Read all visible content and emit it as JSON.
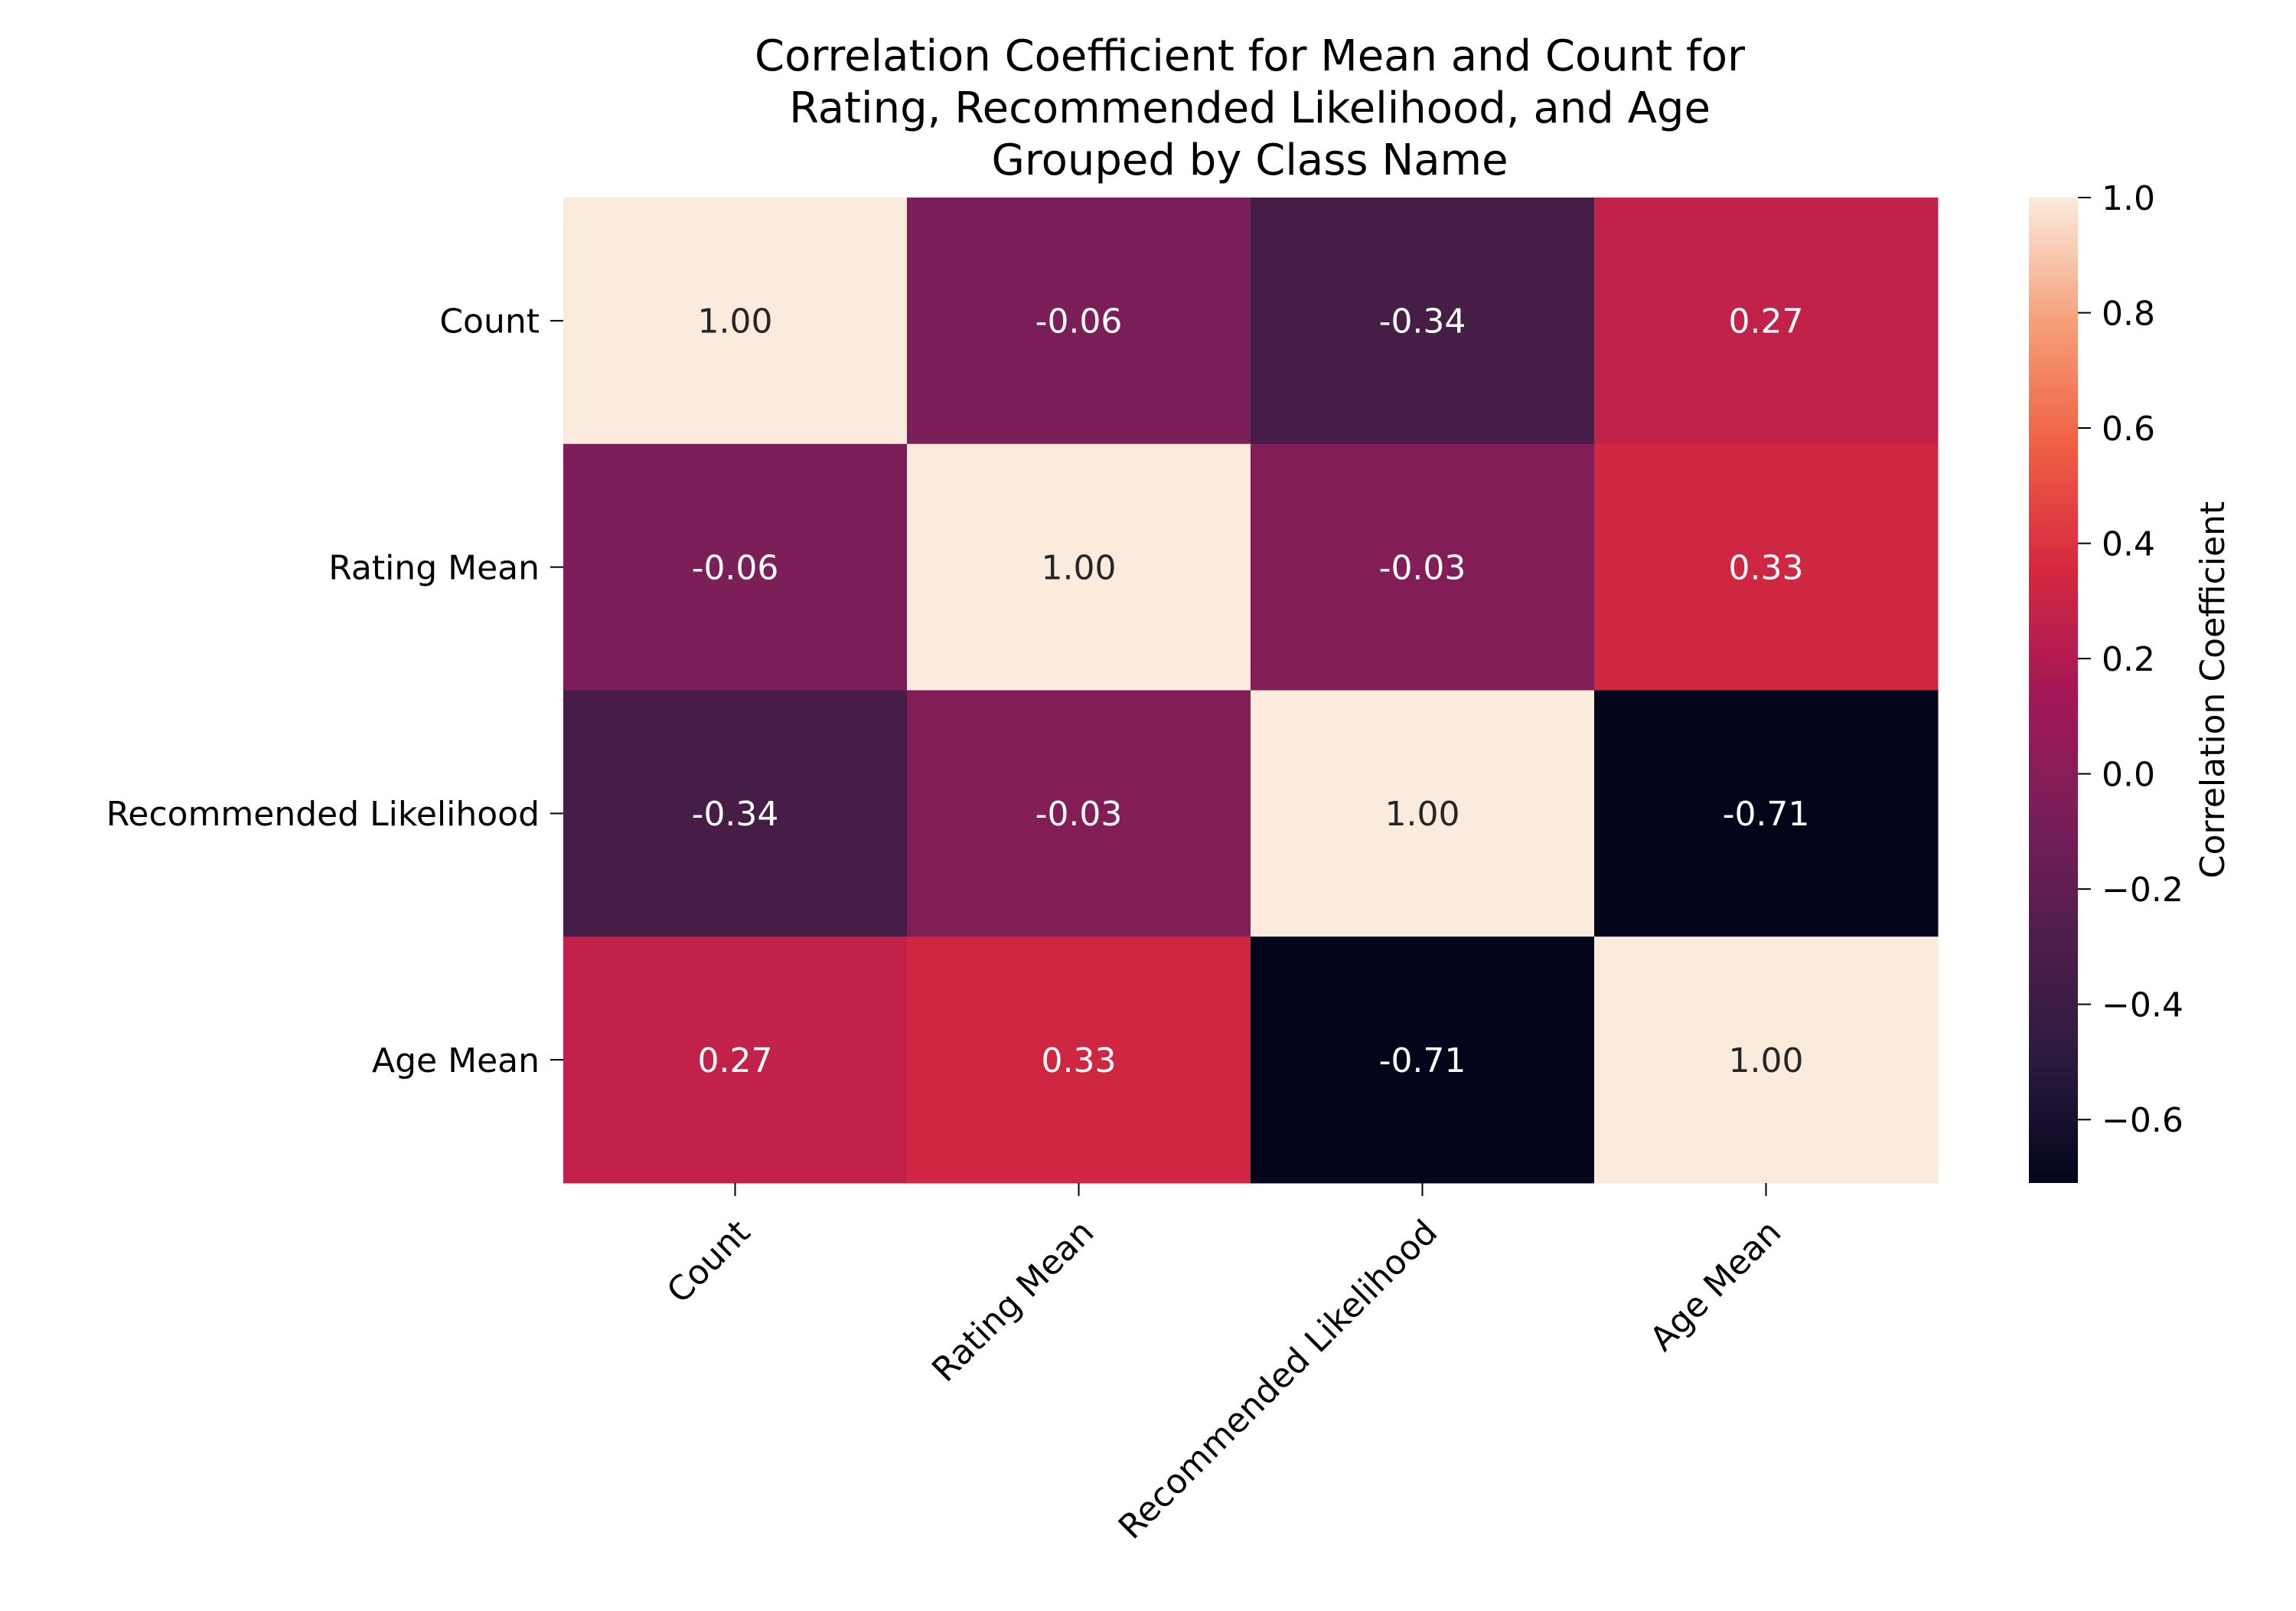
{
  "chart_data": {
    "type": "heatmap",
    "title_lines": [
      "Correlation Coefficient for Mean and Count for",
      "Rating, Recommended Likelihood, and Age",
      "Grouped by Class Name"
    ],
    "rows": [
      "Count",
      "Rating Mean",
      "Recommended Likelihood",
      "Age Mean"
    ],
    "cols": [
      "Count",
      "Rating Mean",
      "Recommended Likelihood",
      "Age Mean"
    ],
    "values": [
      [
        1.0,
        -0.06,
        -0.34,
        0.27
      ],
      [
        -0.06,
        1.0,
        -0.03,
        0.33
      ],
      [
        -0.34,
        -0.03,
        1.0,
        -0.71
      ],
      [
        0.27,
        0.33,
        -0.71,
        1.0
      ]
    ],
    "annotation_format": "0.00",
    "colorbar": {
      "label": "Correlation Coefficient",
      "range": [
        -0.71,
        1.0
      ],
      "ticks": [
        1.0,
        0.8,
        0.6,
        0.4,
        0.2,
        0.0,
        -0.2,
        -0.4,
        -0.6
      ],
      "tick_labels": [
        "1.0",
        "0.8",
        "0.6",
        "0.4",
        "0.2",
        "0.0",
        "−0.2",
        "−0.4",
        "−0.6"
      ],
      "colormap": "rocket"
    },
    "grid": false,
    "legend": "colorbar-right"
  }
}
